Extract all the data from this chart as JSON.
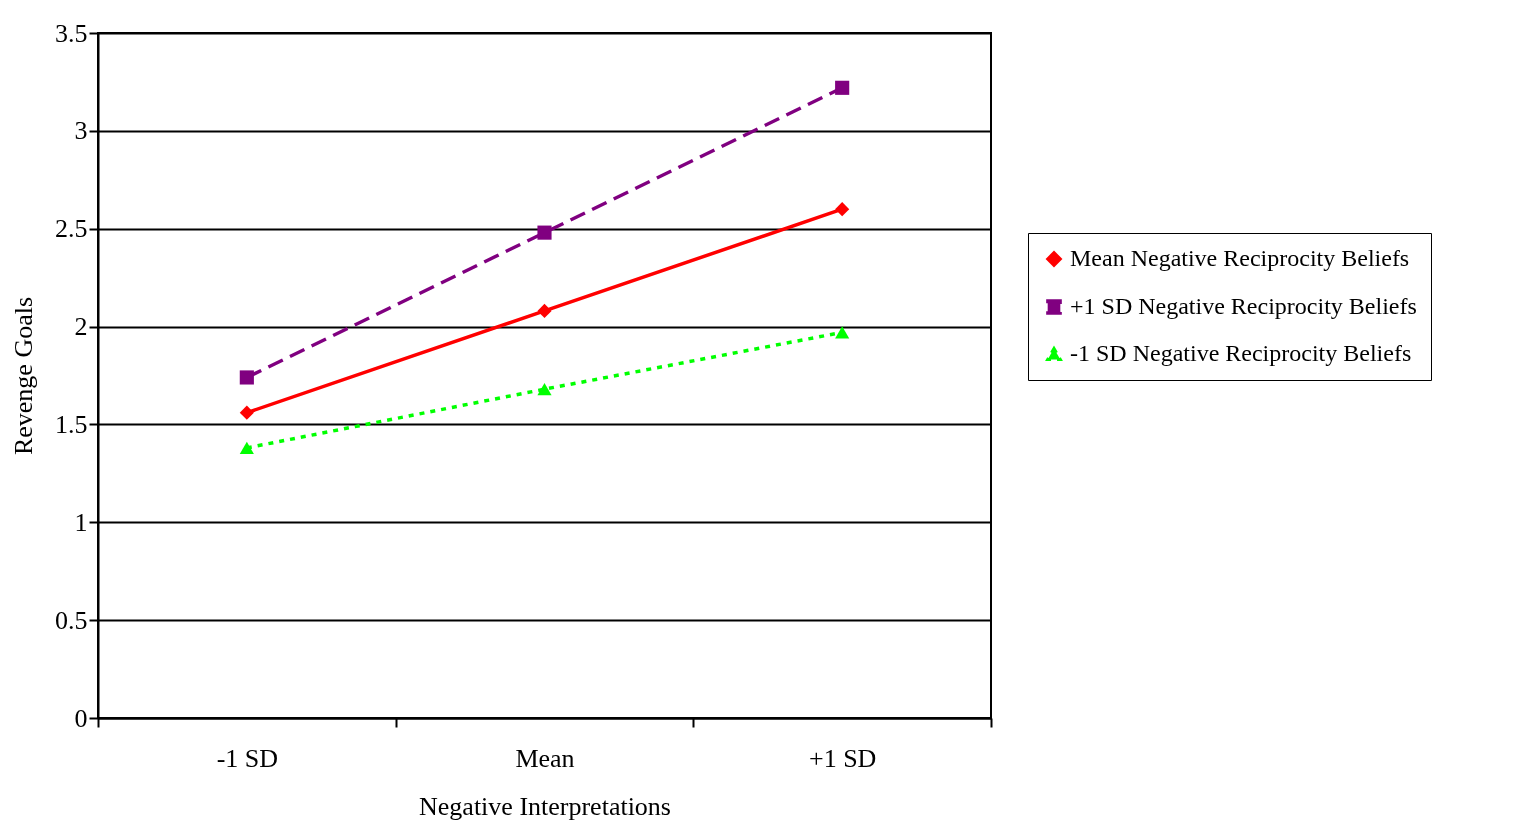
{
  "chart_data": {
    "type": "line",
    "xlabel": "Negative Interpretations",
    "ylabel": "Revenge Goals",
    "categories": [
      "-1 SD",
      "Mean",
      "+1 SD"
    ],
    "series": [
      {
        "name": "Mean Negative Reciprocity Beliefs",
        "color": "#ff0000",
        "line_style": "solid",
        "marker": "diamond",
        "values": [
          1.56,
          2.08,
          2.6
        ]
      },
      {
        "name": "+1 SD Negative Reciprocity Beliefs",
        "color": "#800080",
        "line_style": "dashed",
        "marker": "square",
        "values": [
          1.74,
          2.48,
          3.22
        ]
      },
      {
        "name": "-1 SD Negative Reciprocity Beliefs",
        "color": "#00ff00",
        "line_style": "dotted",
        "marker": "triangle",
        "values": [
          1.38,
          1.68,
          1.97
        ]
      }
    ],
    "ylim": [
      0,
      3.5
    ],
    "yticks": [
      0,
      0.5,
      1,
      1.5,
      2,
      2.5,
      3,
      3.5
    ],
    "grid": "y",
    "legend": "right"
  }
}
